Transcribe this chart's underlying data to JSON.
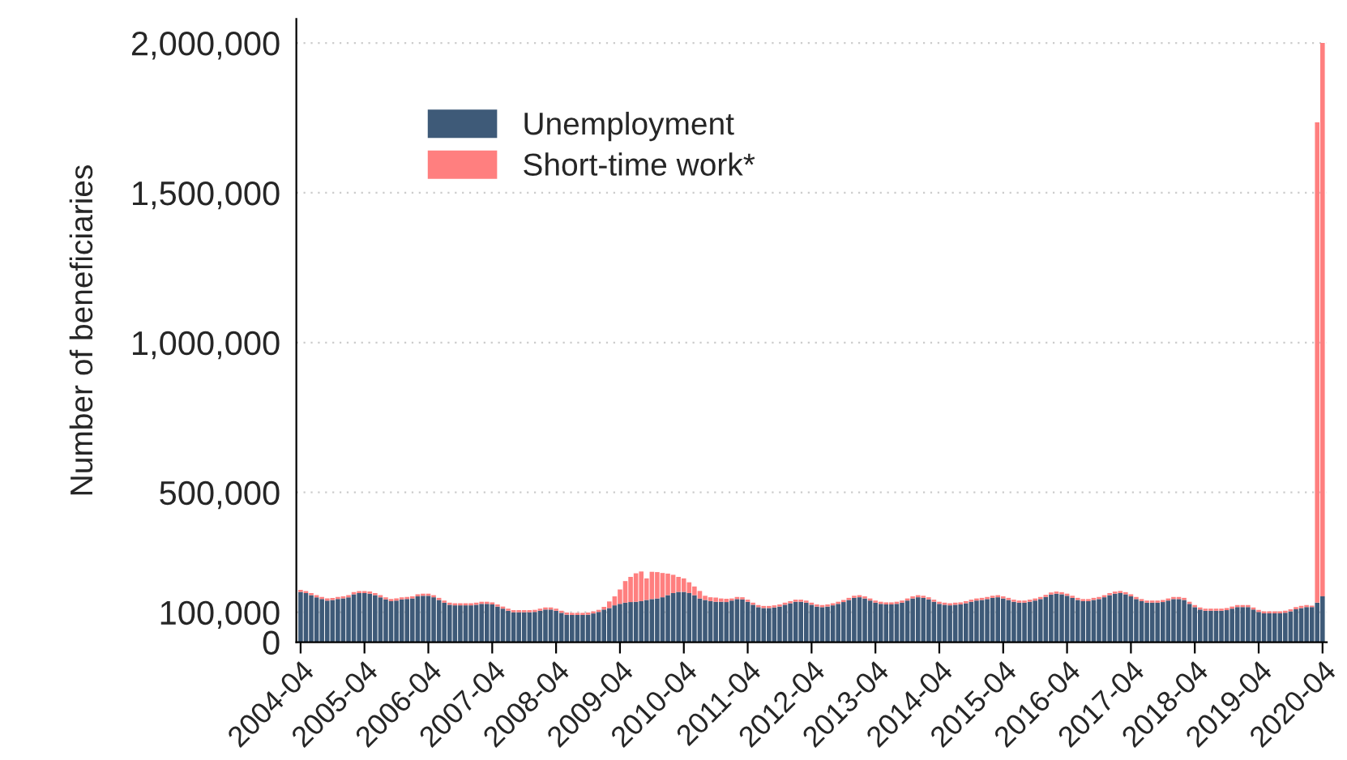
{
  "chart_data": {
    "type": "bar",
    "stacked": true,
    "ylabel": "Number of beneficiaries",
    "categories": [
      "2004-04",
      null,
      null,
      null,
      null,
      null,
      null,
      null,
      null,
      null,
      null,
      null,
      "2005-04",
      null,
      null,
      null,
      null,
      null,
      null,
      null,
      null,
      null,
      null,
      null,
      "2006-04",
      null,
      null,
      null,
      null,
      null,
      null,
      null,
      null,
      null,
      null,
      null,
      "2007-04",
      null,
      null,
      null,
      null,
      null,
      null,
      null,
      null,
      null,
      null,
      null,
      "2008-04",
      null,
      null,
      null,
      null,
      null,
      null,
      null,
      null,
      null,
      null,
      null,
      "2009-04",
      null,
      null,
      null,
      null,
      null,
      null,
      null,
      null,
      null,
      null,
      null,
      "2010-04",
      null,
      null,
      null,
      null,
      null,
      null,
      null,
      null,
      null,
      null,
      null,
      "2011-04",
      null,
      null,
      null,
      null,
      null,
      null,
      null,
      null,
      null,
      null,
      null,
      "2012-04",
      null,
      null,
      null,
      null,
      null,
      null,
      null,
      null,
      null,
      null,
      null,
      "2013-04",
      null,
      null,
      null,
      null,
      null,
      null,
      null,
      null,
      null,
      null,
      null,
      "2014-04",
      null,
      null,
      null,
      null,
      null,
      null,
      null,
      null,
      null,
      null,
      null,
      "2015-04",
      null,
      null,
      null,
      null,
      null,
      null,
      null,
      null,
      null,
      null,
      null,
      "2016-04",
      null,
      null,
      null,
      null,
      null,
      null,
      null,
      null,
      null,
      null,
      null,
      "2017-04",
      null,
      null,
      null,
      null,
      null,
      null,
      null,
      null,
      null,
      null,
      null,
      "2018-04",
      null,
      null,
      null,
      null,
      null,
      null,
      null,
      null,
      null,
      null,
      null,
      "2019-04",
      null,
      null,
      null,
      null,
      null,
      null,
      null,
      null,
      null,
      null,
      null,
      "2020-04"
    ],
    "series": [
      {
        "name": "Unemployment",
        "color": "#3e5a78",
        "values": [
          168000,
          164000,
          157000,
          150000,
          144000,
          139000,
          141000,
          144000,
          146000,
          150000,
          160000,
          164000,
          164000,
          162000,
          157000,
          150000,
          143000,
          137000,
          139000,
          143000,
          144000,
          146000,
          153000,
          155000,
          155000,
          150000,
          141000,
          132000,
          125000,
          123000,
          123000,
          123000,
          123000,
          125000,
          128000,
          128000,
          126000,
          119000,
          112000,
          105000,
          100000,
          100000,
          100000,
          100000,
          101000,
          105000,
          109000,
          109000,
          105000,
          98000,
          92000,
          91000,
          91000,
          91000,
          92000,
          96000,
          101000,
          109000,
          114000,
          123000,
          128000,
          132000,
          134000,
          135000,
          137000,
          141000,
          144000,
          146000,
          150000,
          157000,
          164000,
          168000,
          168000,
          164000,
          157000,
          146000,
          141000,
          137000,
          135000,
          135000,
          134000,
          139000,
          144000,
          143000,
          135000,
          125000,
          117000,
          114000,
          114000,
          116000,
          119000,
          125000,
          130000,
          135000,
          135000,
          132000,
          125000,
          119000,
          117000,
          119000,
          123000,
          128000,
          134000,
          141000,
          148000,
          150000,
          146000,
          139000,
          132000,
          128000,
          126000,
          126000,
          128000,
          132000,
          139000,
          146000,
          150000,
          148000,
          143000,
          135000,
          128000,
          125000,
          123000,
          125000,
          126000,
          130000,
          135000,
          139000,
          141000,
          144000,
          148000,
          150000,
          146000,
          141000,
          135000,
          132000,
          132000,
          135000,
          139000,
          144000,
          151000,
          159000,
          162000,
          160000,
          155000,
          148000,
          141000,
          137000,
          137000,
          141000,
          144000,
          150000,
          157000,
          162000,
          164000,
          160000,
          153000,
          144000,
          137000,
          132000,
          132000,
          132000,
          134000,
          139000,
          144000,
          144000,
          141000,
          128000,
          117000,
          109000,
          105000,
          105000,
          105000,
          105000,
          107000,
          112000,
          117000,
          117000,
          117000,
          109000,
          101000,
          96000,
          96000,
          96000,
          96000,
          98000,
          103000,
          110000,
          114000,
          117000,
          117000,
          132000,
          153000
        ]
      },
      {
        "name": "Short-time work*",
        "color": "#ff7f7f",
        "values": [
          7000,
          7000,
          7000,
          7000,
          7000,
          7000,
          7000,
          7000,
          7000,
          7000,
          7000,
          7000,
          7000,
          7000,
          7000,
          7000,
          7000,
          7000,
          7000,
          7000,
          7000,
          7000,
          7000,
          7000,
          7000,
          7000,
          7000,
          7000,
          7000,
          7000,
          7000,
          7000,
          7000,
          7000,
          7000,
          7000,
          7000,
          7000,
          7000,
          7000,
          7000,
          7000,
          7000,
          7000,
          7000,
          7000,
          7000,
          7000,
          7000,
          7000,
          7000,
          7000,
          7000,
          7000,
          7000,
          7000,
          7000,
          9000,
          22000,
          30000,
          48000,
          72000,
          84000,
          95000,
          99000,
          72000,
          91000,
          88000,
          81000,
          72000,
          61000,
          50000,
          45000,
          36000,
          29000,
          25000,
          14000,
          13000,
          14000,
          11000,
          11000,
          7000,
          7000,
          7000,
          7000,
          7000,
          7000,
          7000,
          7000,
          7000,
          7000,
          7000,
          7000,
          7000,
          7000,
          7000,
          7000,
          7000,
          7000,
          7000,
          7000,
          7000,
          7000,
          7000,
          7000,
          7000,
          7000,
          7000,
          7000,
          7000,
          7000,
          7000,
          7000,
          7000,
          7000,
          7000,
          7000,
          7000,
          7000,
          7000,
          7000,
          7000,
          7000,
          7000,
          7000,
          7000,
          7000,
          7000,
          7000,
          7000,
          7000,
          7000,
          7000,
          7000,
          7000,
          7000,
          7000,
          7000,
          7000,
          7000,
          7000,
          7000,
          7000,
          7000,
          7000,
          7000,
          7000,
          7000,
          7000,
          7000,
          7000,
          7000,
          7000,
          7000,
          7000,
          7000,
          7000,
          7000,
          7000,
          7000,
          7000,
          7000,
          7000,
          7000,
          7000,
          7000,
          7000,
          7000,
          7000,
          7000,
          7000,
          7000,
          7000,
          7000,
          7000,
          7000,
          7000,
          7000,
          7000,
          7000,
          7000,
          7000,
          7000,
          7000,
          7000,
          7000,
          7000,
          7000,
          7000,
          7000,
          5000,
          1603000,
          1847000
        ]
      }
    ],
    "ylim": [
      0,
      2080000
    ],
    "yticks": [
      0,
      {
        "value": 100000,
        "label": "100,000"
      },
      {
        "value": 500000,
        "label": "500,000"
      },
      {
        "value": 1000000,
        "label": "1,000,000"
      },
      {
        "value": 1500000,
        "label": "1,500,000"
      },
      {
        "value": 2000000,
        "label": "2,000,000"
      }
    ],
    "grid": "y",
    "legend": "top left"
  }
}
